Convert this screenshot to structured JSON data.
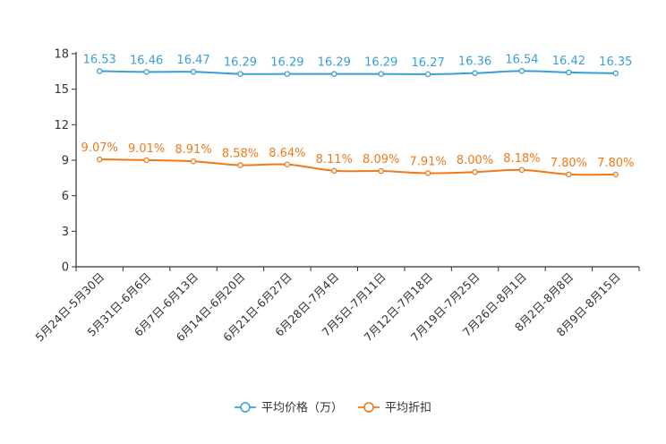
{
  "chart_data": {
    "type": "line",
    "categories": [
      "5月24日-5月30日",
      "5月31日-6月6日",
      "6月7日-6月13日",
      "6月14日-6月20日",
      "6月21日-6月27日",
      "6月28日-7月4日",
      "7月5日-7月11日",
      "7月12日-7月18日",
      "7月19日-7月25日",
      "7月26日-8月1日",
      "8月2日-8月8日",
      "8月9日-8月15日"
    ],
    "ylim": [
      0,
      18
    ],
    "yticks": [
      0,
      3,
      6,
      9,
      12,
      15,
      18
    ],
    "series": [
      {
        "name": "平均价格（万）",
        "color": "#3a9fd6",
        "values": [
          16.53,
          16.46,
          16.47,
          16.29,
          16.29,
          16.29,
          16.29,
          16.27,
          16.36,
          16.54,
          16.42,
          16.35
        ],
        "labels": [
          "16.53",
          "16.46",
          "16.47",
          "16.29",
          "16.29",
          "16.29",
          "16.29",
          "16.27",
          "16.36",
          "16.54",
          "16.42",
          "16.35"
        ]
      },
      {
        "name": "平均折扣",
        "color": "#f07a1a",
        "values": [
          9.07,
          9.01,
          8.91,
          8.58,
          8.64,
          8.11,
          8.09,
          7.91,
          8.0,
          8.18,
          7.8,
          7.8
        ],
        "labels": [
          "9.07%",
          "9.01%",
          "8.91%",
          "8.58%",
          "8.64%",
          "8.11%",
          "8.09%",
          "7.91%",
          "8.00%",
          "8.18%",
          "7.80%",
          "7.80%"
        ]
      }
    ],
    "legend_position": "bottom-center"
  }
}
